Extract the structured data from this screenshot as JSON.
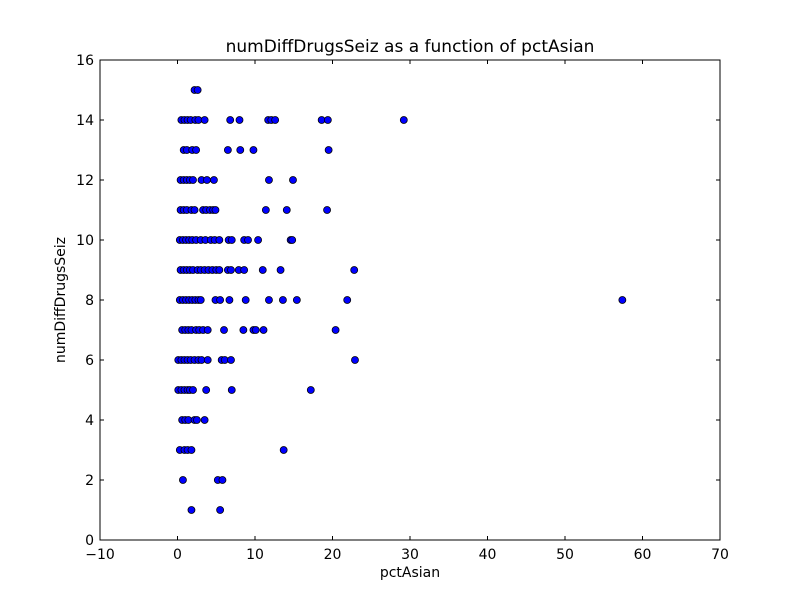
{
  "chart_data": {
    "type": "scatter",
    "title": "numDiffDrugsSeiz as a function of pctAsian",
    "xlabel": "pctAsian",
    "ylabel": "numDiffDrugsSeiz",
    "xlim": [
      -10,
      70
    ],
    "ylim": [
      0,
      16
    ],
    "xticks": [
      -10,
      0,
      10,
      20,
      30,
      40,
      50,
      60,
      70
    ],
    "yticks": [
      0,
      2,
      4,
      6,
      8,
      10,
      12,
      14,
      16
    ],
    "xtick_labels": [
      "−10",
      "0",
      "10",
      "20",
      "30",
      "40",
      "50",
      "60",
      "70"
    ],
    "ytick_labels": [
      "0",
      "2",
      "4",
      "6",
      "8",
      "10",
      "12",
      "14",
      "16"
    ],
    "grid": false,
    "marker_color": "#0000ff",
    "marker_edge": "#000000",
    "points": [
      {
        "x": 2.2,
        "y": 15
      },
      {
        "x": 2.6,
        "y": 15
      },
      {
        "x": 0.5,
        "y": 14
      },
      {
        "x": 0.9,
        "y": 14
      },
      {
        "x": 1.3,
        "y": 14
      },
      {
        "x": 1.7,
        "y": 14
      },
      {
        "x": 2.3,
        "y": 14
      },
      {
        "x": 2.7,
        "y": 14
      },
      {
        "x": 3.5,
        "y": 14
      },
      {
        "x": 6.8,
        "y": 14
      },
      {
        "x": 8.0,
        "y": 14
      },
      {
        "x": 11.7,
        "y": 14
      },
      {
        "x": 12.1,
        "y": 14
      },
      {
        "x": 12.6,
        "y": 14
      },
      {
        "x": 18.6,
        "y": 14
      },
      {
        "x": 19.4,
        "y": 14
      },
      {
        "x": 29.2,
        "y": 14
      },
      {
        "x": 0.8,
        "y": 13
      },
      {
        "x": 1.2,
        "y": 13
      },
      {
        "x": 1.9,
        "y": 13
      },
      {
        "x": 2.4,
        "y": 13
      },
      {
        "x": 6.5,
        "y": 13
      },
      {
        "x": 8.1,
        "y": 13
      },
      {
        "x": 9.8,
        "y": 13
      },
      {
        "x": 19.5,
        "y": 13
      },
      {
        "x": 0.4,
        "y": 12
      },
      {
        "x": 0.8,
        "y": 12
      },
      {
        "x": 1.2,
        "y": 12
      },
      {
        "x": 1.6,
        "y": 12
      },
      {
        "x": 2.0,
        "y": 12
      },
      {
        "x": 3.1,
        "y": 12
      },
      {
        "x": 3.8,
        "y": 12
      },
      {
        "x": 4.7,
        "y": 12
      },
      {
        "x": 11.8,
        "y": 12
      },
      {
        "x": 14.9,
        "y": 12
      },
      {
        "x": 0.4,
        "y": 11
      },
      {
        "x": 0.8,
        "y": 11
      },
      {
        "x": 1.2,
        "y": 11
      },
      {
        "x": 1.8,
        "y": 11
      },
      {
        "x": 2.2,
        "y": 11
      },
      {
        "x": 3.3,
        "y": 11
      },
      {
        "x": 3.7,
        "y": 11
      },
      {
        "x": 4.2,
        "y": 11
      },
      {
        "x": 4.6,
        "y": 11
      },
      {
        "x": 4.9,
        "y": 11
      },
      {
        "x": 11.4,
        "y": 11
      },
      {
        "x": 14.1,
        "y": 11
      },
      {
        "x": 19.3,
        "y": 11
      },
      {
        "x": 0.3,
        "y": 10
      },
      {
        "x": 0.7,
        "y": 10
      },
      {
        "x": 1.1,
        "y": 10
      },
      {
        "x": 1.5,
        "y": 10
      },
      {
        "x": 1.9,
        "y": 10
      },
      {
        "x": 2.4,
        "y": 10
      },
      {
        "x": 3.0,
        "y": 10
      },
      {
        "x": 3.6,
        "y": 10
      },
      {
        "x": 4.3,
        "y": 10
      },
      {
        "x": 4.8,
        "y": 10
      },
      {
        "x": 5.4,
        "y": 10
      },
      {
        "x": 6.6,
        "y": 10
      },
      {
        "x": 7.0,
        "y": 10
      },
      {
        "x": 8.6,
        "y": 10
      },
      {
        "x": 9.1,
        "y": 10
      },
      {
        "x": 10.4,
        "y": 10
      },
      {
        "x": 14.6,
        "y": 10
      },
      {
        "x": 14.8,
        "y": 10
      },
      {
        "x": 0.4,
        "y": 9
      },
      {
        "x": 0.8,
        "y": 9
      },
      {
        "x": 1.2,
        "y": 9
      },
      {
        "x": 1.6,
        "y": 9
      },
      {
        "x": 2.0,
        "y": 9
      },
      {
        "x": 2.6,
        "y": 9
      },
      {
        "x": 3.0,
        "y": 9
      },
      {
        "x": 3.5,
        "y": 9
      },
      {
        "x": 4.0,
        "y": 9
      },
      {
        "x": 4.5,
        "y": 9
      },
      {
        "x": 5.0,
        "y": 9
      },
      {
        "x": 5.4,
        "y": 9
      },
      {
        "x": 6.5,
        "y": 9
      },
      {
        "x": 6.9,
        "y": 9
      },
      {
        "x": 7.9,
        "y": 9
      },
      {
        "x": 8.6,
        "y": 9
      },
      {
        "x": 11.0,
        "y": 9
      },
      {
        "x": 13.3,
        "y": 9
      },
      {
        "x": 22.8,
        "y": 9
      },
      {
        "x": 0.3,
        "y": 8
      },
      {
        "x": 0.7,
        "y": 8
      },
      {
        "x": 1.1,
        "y": 8
      },
      {
        "x": 1.5,
        "y": 8
      },
      {
        "x": 1.9,
        "y": 8
      },
      {
        "x": 2.3,
        "y": 8
      },
      {
        "x": 2.7,
        "y": 8
      },
      {
        "x": 3.0,
        "y": 8
      },
      {
        "x": 4.9,
        "y": 8
      },
      {
        "x": 5.5,
        "y": 8
      },
      {
        "x": 6.7,
        "y": 8
      },
      {
        "x": 8.8,
        "y": 8
      },
      {
        "x": 11.8,
        "y": 8
      },
      {
        "x": 13.6,
        "y": 8
      },
      {
        "x": 15.4,
        "y": 8
      },
      {
        "x": 21.9,
        "y": 8
      },
      {
        "x": 57.4,
        "y": 8
      },
      {
        "x": 0.6,
        "y": 7
      },
      {
        "x": 1.0,
        "y": 7
      },
      {
        "x": 1.4,
        "y": 7
      },
      {
        "x": 1.8,
        "y": 7
      },
      {
        "x": 2.4,
        "y": 7
      },
      {
        "x": 2.8,
        "y": 7
      },
      {
        "x": 3.3,
        "y": 7
      },
      {
        "x": 3.9,
        "y": 7
      },
      {
        "x": 6.0,
        "y": 7
      },
      {
        "x": 8.5,
        "y": 7
      },
      {
        "x": 9.8,
        "y": 7
      },
      {
        "x": 10.1,
        "y": 7
      },
      {
        "x": 11.1,
        "y": 7
      },
      {
        "x": 20.4,
        "y": 7
      },
      {
        "x": 0.1,
        "y": 6
      },
      {
        "x": 0.5,
        "y": 6
      },
      {
        "x": 0.9,
        "y": 6
      },
      {
        "x": 1.3,
        "y": 6
      },
      {
        "x": 1.7,
        "y": 6
      },
      {
        "x": 2.2,
        "y": 6
      },
      {
        "x": 2.7,
        "y": 6
      },
      {
        "x": 3.1,
        "y": 6
      },
      {
        "x": 3.9,
        "y": 6
      },
      {
        "x": 5.7,
        "y": 6
      },
      {
        "x": 6.1,
        "y": 6
      },
      {
        "x": 6.9,
        "y": 6
      },
      {
        "x": 22.9,
        "y": 6
      },
      {
        "x": 0.1,
        "y": 5
      },
      {
        "x": 0.5,
        "y": 5
      },
      {
        "x": 0.9,
        "y": 5
      },
      {
        "x": 1.3,
        "y": 5
      },
      {
        "x": 1.6,
        "y": 5
      },
      {
        "x": 2.0,
        "y": 5
      },
      {
        "x": 3.7,
        "y": 5
      },
      {
        "x": 7.0,
        "y": 5
      },
      {
        "x": 17.2,
        "y": 5
      },
      {
        "x": 0.6,
        "y": 4
      },
      {
        "x": 1.0,
        "y": 4
      },
      {
        "x": 1.4,
        "y": 4
      },
      {
        "x": 2.2,
        "y": 4
      },
      {
        "x": 2.5,
        "y": 4
      },
      {
        "x": 3.5,
        "y": 4
      },
      {
        "x": 0.3,
        "y": 3
      },
      {
        "x": 0.9,
        "y": 3
      },
      {
        "x": 1.3,
        "y": 3
      },
      {
        "x": 1.8,
        "y": 3
      },
      {
        "x": 13.7,
        "y": 3
      },
      {
        "x": 0.7,
        "y": 2
      },
      {
        "x": 5.2,
        "y": 2
      },
      {
        "x": 5.8,
        "y": 2
      },
      {
        "x": 1.8,
        "y": 1
      },
      {
        "x": 5.5,
        "y": 1
      }
    ]
  }
}
